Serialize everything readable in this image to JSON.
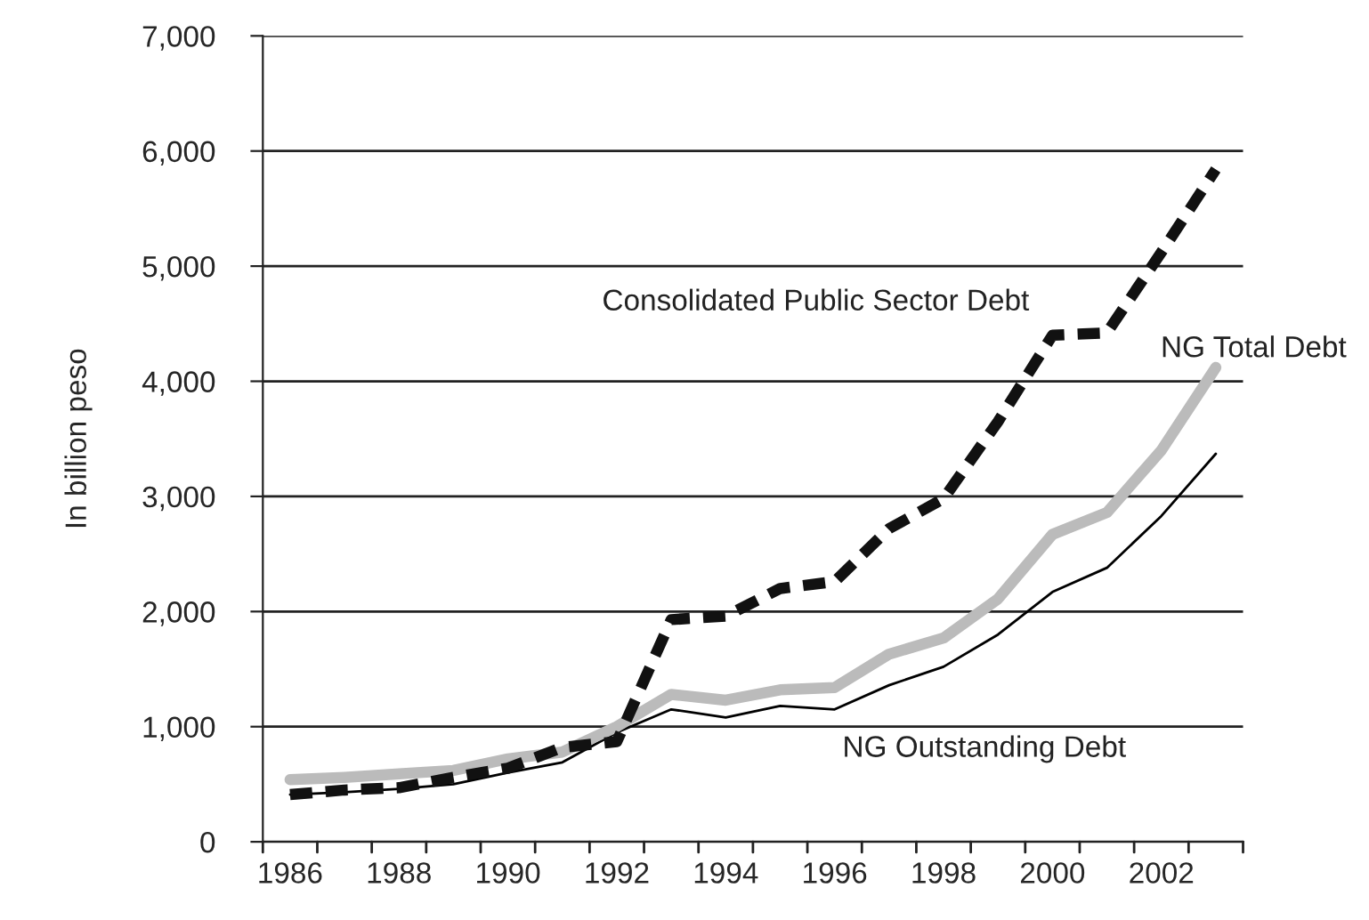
{
  "chart_data": {
    "type": "line",
    "ylabel": "In billion peso",
    "x": [
      1986,
      1987,
      1988,
      1989,
      1990,
      1991,
      1992,
      1993,
      1994,
      1995,
      1996,
      1997,
      1998,
      1999,
      2000,
      2001,
      2002,
      2003
    ],
    "series": [
      {
        "name": "Consolidated Public Sector Debt",
        "color": "#111111",
        "line_style": "dashed",
        "values": [
          410,
          450,
          470,
          560,
          640,
          820,
          870,
          1930,
          1960,
          2200,
          2260,
          2720,
          2980,
          3650,
          4400,
          4420,
          5120,
          5840
        ]
      },
      {
        "name": "NG Total Debt",
        "color": "#bbbbbb",
        "line_style": "solid",
        "values": [
          540,
          560,
          590,
          620,
          720,
          780,
          1000,
          1280,
          1230,
          1320,
          1340,
          1630,
          1770,
          2110,
          2670,
          2860,
          3400,
          4120
        ]
      },
      {
        "name": "NG Outstanding Debt",
        "color": "#000000",
        "line_style": "solid",
        "values": [
          410,
          430,
          460,
          500,
          600,
          690,
          950,
          1150,
          1080,
          1180,
          1150,
          1360,
          1520,
          1800,
          2170,
          2380,
          2830,
          3370
        ]
      }
    ],
    "xlim": [
      1985.5,
      2003.5
    ],
    "xticks": [
      1986,
      1988,
      1990,
      1992,
      1994,
      1996,
      1998,
      2000,
      2002
    ],
    "ylim": [
      0,
      7000
    ],
    "yticks": [
      {
        "value": 0,
        "label": "0"
      },
      {
        "value": 1000,
        "label": "1,000"
      },
      {
        "value": 2000,
        "label": "2,000"
      },
      {
        "value": 3000,
        "label": "3,000"
      },
      {
        "value": 4000,
        "label": "4,000"
      },
      {
        "value": 5000,
        "label": "5,000"
      },
      {
        "value": 6000,
        "label": "6,000"
      },
      {
        "value": 7000,
        "label": "7,000"
      }
    ],
    "grid": "y",
    "legend": false,
    "marker": "none"
  }
}
